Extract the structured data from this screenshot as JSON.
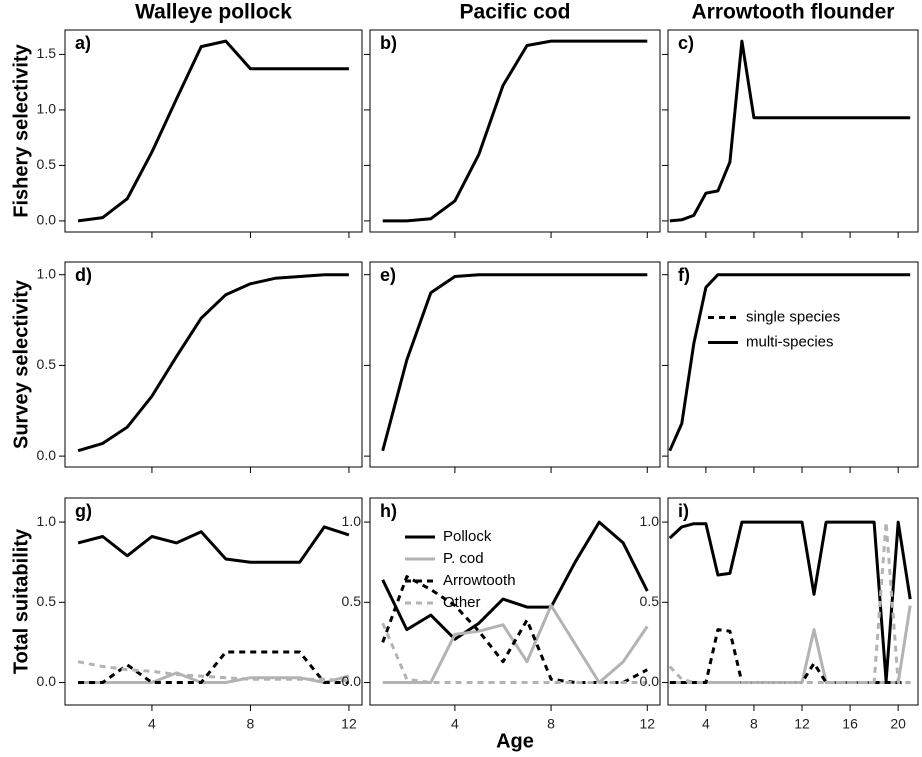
{
  "chart_data": [
    {
      "type": "line",
      "title": "Walleye pollock",
      "ylabel": "Fishery selectivity",
      "panel_label": "a)",
      "x": [
        1,
        2,
        3,
        4,
        5,
        6,
        7,
        8,
        9,
        10,
        11,
        12
      ],
      "xlim": [
        0.47,
        12.53
      ],
      "xticks": [
        4,
        8,
        12
      ],
      "xtick_labels": false,
      "ylim": [
        -0.1,
        1.72
      ],
      "yticks": [
        {
          "value": 0,
          "label": "0.0"
        },
        0.5,
        {
          "value": 1,
          "label": "1.0"
        },
        1.5
      ],
      "ytick_labels": true,
      "series": [
        {
          "name": "multi-species",
          "color": "#000000",
          "dash": false,
          "values": [
            0,
            0.03,
            0.2,
            0.62,
            1.1,
            1.57,
            1.62,
            1.37,
            1.37,
            1.37,
            1.37,
            1.37
          ]
        }
      ]
    },
    {
      "type": "line",
      "title": "Pacific cod",
      "panel_label": "b)",
      "x": [
        1,
        2,
        3,
        4,
        5,
        6,
        7,
        8,
        9,
        10,
        11,
        12
      ],
      "xlim": [
        0.47,
        12.53
      ],
      "xticks": [
        4,
        8,
        12
      ],
      "xtick_labels": false,
      "ylim": [
        -0.1,
        1.72
      ],
      "yticks": [
        0,
        0.5,
        1,
        1.5
      ],
      "ytick_labels": false,
      "series": [
        {
          "name": "multi-species",
          "color": "#000000",
          "dash": false,
          "values": [
            0,
            0,
            0.02,
            0.18,
            0.6,
            1.22,
            1.58,
            1.62,
            1.62,
            1.62,
            1.62,
            1.62
          ]
        }
      ]
    },
    {
      "type": "line",
      "title": "Arrowtooth flounder",
      "panel_label": "c)",
      "x": [
        1,
        2,
        3,
        4,
        5,
        6,
        7,
        8,
        9,
        10,
        11,
        12,
        13,
        14,
        15,
        16,
        17,
        18,
        19,
        20,
        21
      ],
      "xlim": [
        0.85,
        21.65
      ],
      "xticks": [
        4,
        8,
        12,
        16,
        20
      ],
      "xtick_labels": false,
      "ylim": [
        -0.1,
        1.72
      ],
      "yticks": [
        0,
        0.5,
        1,
        1.5
      ],
      "ytick_labels": false,
      "series": [
        {
          "name": "multi-species",
          "color": "#000000",
          "dash": false,
          "values": [
            0,
            0.01,
            0.05,
            0.25,
            0.27,
            0.53,
            1.62,
            0.93,
            0.93,
            0.93,
            0.93,
            0.93,
            0.93,
            0.93,
            0.93,
            0.93,
            0.93,
            0.93,
            0.93,
            0.93,
            0.93
          ]
        }
      ]
    },
    {
      "type": "line",
      "ylabel": "Survey selectivity",
      "panel_label": "d)",
      "x": [
        1,
        2,
        3,
        4,
        5,
        6,
        7,
        8,
        9,
        10,
        11,
        12
      ],
      "xlim": [
        0.47,
        12.53
      ],
      "xticks": [
        4,
        8,
        12
      ],
      "xtick_labels": false,
      "ylim": [
        -0.06,
        1.07
      ],
      "yticks": [
        {
          "value": 0,
          "label": "0.0"
        },
        0.5,
        {
          "value": 1,
          "label": "1.0"
        }
      ],
      "ytick_labels": true,
      "series": [
        {
          "name": "multi-species",
          "color": "#000000",
          "dash": false,
          "values": [
            0.03,
            0.07,
            0.16,
            0.33,
            0.55,
            0.76,
            0.89,
            0.95,
            0.98,
            0.99,
            1,
            1
          ]
        }
      ]
    },
    {
      "type": "line",
      "panel_label": "e)",
      "x": [
        1,
        2,
        3,
        4,
        5,
        6,
        7,
        8,
        9,
        10,
        11,
        12
      ],
      "xlim": [
        0.47,
        12.53
      ],
      "xticks": [
        4,
        8,
        12
      ],
      "xtick_labels": false,
      "ylim": [
        -0.06,
        1.07
      ],
      "yticks": [
        0,
        0.5,
        1
      ],
      "ytick_labels": false,
      "series": [
        {
          "name": "multi-species",
          "color": "#000000",
          "dash": false,
          "values": [
            0.03,
            0.53,
            0.9,
            0.99,
            1,
            1,
            1,
            1,
            1,
            1,
            1,
            1
          ]
        }
      ]
    },
    {
      "type": "line",
      "panel_label": "f)",
      "legend": "center right",
      "legend_entries": [
        {
          "name": "single species",
          "dash": true
        },
        {
          "name": "multi-species",
          "dash": false
        }
      ],
      "x": [
        1,
        2,
        3,
        4,
        5,
        6,
        7,
        8,
        9,
        10,
        11,
        12,
        13,
        14,
        15,
        16,
        17,
        18,
        19,
        20,
        21
      ],
      "xlim": [
        0.85,
        21.65
      ],
      "xticks": [
        4,
        8,
        12,
        16,
        20
      ],
      "xtick_labels": false,
      "ylim": [
        -0.06,
        1.07
      ],
      "yticks": [
        0,
        0.5,
        1
      ],
      "ytick_labels": false,
      "series": [
        {
          "name": "multi-species",
          "color": "#000000",
          "dash": false,
          "values": [
            0.03,
            0.18,
            0.62,
            0.93,
            1,
            1,
            1,
            1,
            1,
            1,
            1,
            1,
            1,
            1,
            1,
            1,
            1,
            1,
            1,
            1,
            1
          ]
        }
      ]
    },
    {
      "type": "line",
      "ylabel": "Total suitability",
      "panel_label": "g)",
      "x": [
        1,
        2,
        3,
        4,
        5,
        6,
        7,
        8,
        9,
        10,
        11,
        12
      ],
      "xlim": [
        0.47,
        12.53
      ],
      "xticks": [
        4,
        8,
        12
      ],
      "xtick_labels": true,
      "ylim": [
        -0.14,
        1.15
      ],
      "yticks": [
        {
          "value": 0,
          "label": "0.0"
        },
        0.5,
        {
          "value": 1,
          "label": "1.0"
        }
      ],
      "ytick_labels": true,
      "series": [
        {
          "name": "Pollock",
          "color": "#000000",
          "dash": false,
          "values": [
            0.87,
            0.91,
            0.79,
            0.91,
            0.87,
            0.94,
            0.77,
            0.75,
            0.75,
            0.75,
            0.97,
            0.92
          ]
        },
        {
          "name": "P. cod",
          "color": "#b3b3b3",
          "dash": false,
          "values": [
            0,
            0,
            0,
            0,
            0.06,
            0,
            0,
            0.03,
            0.03,
            0.03,
            0,
            0.04
          ]
        },
        {
          "name": "Arrowtooth",
          "color": "#000000",
          "dash": true,
          "values": [
            0,
            0,
            0.11,
            0,
            0,
            0,
            0.19,
            0.19,
            0.19,
            0.19,
            0,
            0
          ]
        },
        {
          "name": "Other",
          "color": "#b3b3b3",
          "dash": true,
          "values": [
            0.13,
            0.1,
            0.08,
            0.07,
            0.05,
            0.04,
            0.03,
            0.02,
            0.02,
            0.02,
            0.02,
            0.01
          ]
        }
      ]
    },
    {
      "type": "line",
      "panel_label": "h)",
      "xlabel": "Age",
      "legend": "upper left",
      "x": [
        1,
        2,
        3,
        4,
        5,
        6,
        7,
        8,
        9,
        10,
        11,
        12
      ],
      "xlim": [
        0.47,
        12.53
      ],
      "xticks": [
        4,
        8,
        12
      ],
      "xtick_labels": true,
      "ylim": [
        -0.14,
        1.15
      ],
      "yticks": [
        {
          "value": 0,
          "label": "0.0"
        },
        0.5,
        {
          "value": 1,
          "label": "1.0"
        }
      ],
      "ytick_labels": true,
      "series": [
        {
          "name": "Pollock",
          "color": "#000000",
          "dash": false,
          "values": [
            0.64,
            0.33,
            0.42,
            0.27,
            0.37,
            0.52,
            0.47,
            0.47,
            0.75,
            1,
            0.87,
            0.57
          ]
        },
        {
          "name": "P. cod",
          "color": "#b3b3b3",
          "dash": false,
          "values": [
            0,
            0,
            0,
            0.3,
            0.32,
            0.36,
            0.13,
            0.48,
            0.24,
            0,
            0.13,
            0.35
          ]
        },
        {
          "name": "Arrowtooth",
          "color": "#000000",
          "dash": true,
          "values": [
            0.25,
            0.66,
            0.58,
            0.48,
            0.32,
            0.13,
            0.39,
            0.02,
            0,
            0,
            0,
            0.08
          ]
        },
        {
          "name": "Other",
          "color": "#b3b3b3",
          "dash": true,
          "values": [
            0.37,
            0.02,
            0,
            0,
            0,
            0,
            0,
            0,
            0,
            0,
            0,
            0
          ]
        }
      ]
    },
    {
      "type": "line",
      "panel_label": "i)",
      "x": [
        1,
        2,
        3,
        4,
        5,
        6,
        7,
        8,
        9,
        10,
        11,
        12,
        13,
        14,
        15,
        16,
        17,
        18,
        19,
        20,
        21
      ],
      "xlim": [
        0.85,
        21.65
      ],
      "xticks": [
        4,
        8,
        12,
        16,
        20
      ],
      "xtick_labels": true,
      "ylim": [
        -0.14,
        1.15
      ],
      "yticks": [
        {
          "value": 0,
          "label": "0.0"
        },
        0.5,
        {
          "value": 1,
          "label": "1.0"
        }
      ],
      "ytick_labels": true,
      "series": [
        {
          "name": "Pollock",
          "color": "#000000",
          "dash": false,
          "values": [
            0.9,
            0.97,
            0.99,
            0.99,
            0.67,
            0.68,
            1,
            1,
            1,
            1,
            1,
            1,
            0.55,
            1,
            1,
            1,
            1,
            1,
            0.01,
            1,
            0.52
          ]
        },
        {
          "name": "P. cod",
          "color": "#b3b3b3",
          "dash": false,
          "values": [
            0,
            0,
            0,
            0,
            0,
            0,
            0,
            0,
            0,
            0,
            0,
            0,
            0.33,
            0,
            0,
            0,
            0,
            0,
            0,
            0,
            0.48
          ]
        },
        {
          "name": "Arrowtooth",
          "color": "#000000",
          "dash": true,
          "values": [
            0,
            0,
            0,
            0,
            0.33,
            0.32,
            0,
            0,
            0,
            0,
            0,
            0,
            0.12,
            0,
            0,
            0,
            0,
            0,
            0,
            0,
            0
          ]
        },
        {
          "name": "Other",
          "color": "#b3b3b3",
          "dash": true,
          "values": [
            0.1,
            0.02,
            0,
            0,
            0,
            0,
            0,
            0,
            0,
            0,
            0,
            0,
            0,
            0,
            0,
            0,
            0,
            0,
            1,
            0,
            0
          ]
        }
      ]
    }
  ]
}
